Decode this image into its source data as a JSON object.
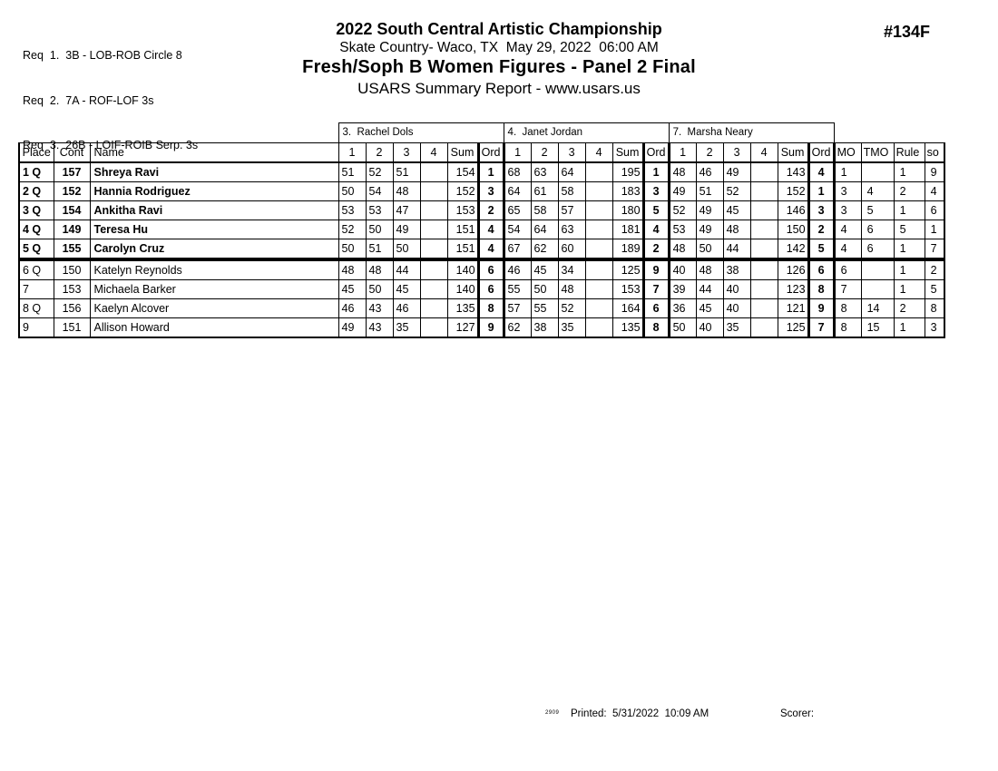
{
  "header": {
    "title": "2022 South Central Artistic Championship",
    "venue_line": "Skate Country- Waco, TX  May 29, 2022  06:00 AM",
    "event": "Fresh/Soph B Women Figures - Panel 2 Final",
    "report_line": "USARS Summary Report - www.usars.us",
    "event_number": "#134F"
  },
  "requirements": [
    "Req  1.  3B - LOB-ROB Circle 8",
    "Req  2.  7A - ROF-LOF 3s",
    "Req  3.  26B - LOIF-ROIB Serp. 3s"
  ],
  "judges": [
    {
      "label": "3.  Rachel Dols"
    },
    {
      "label": "4.  Janet Jordan"
    },
    {
      "label": "7.  Marsha Neary"
    }
  ],
  "columns": {
    "place": "Place",
    "cont": "Cont",
    "name": "Name",
    "score_cols": [
      "1",
      "2",
      "3",
      "4"
    ],
    "sum": "Sum",
    "ord": "Ord",
    "mo": "MO",
    "tmo": "TMO",
    "rule": "Rule",
    "so": "so"
  },
  "rows": [
    {
      "place": "1 Q",
      "cont": "157",
      "name": "Shreya Ravi",
      "bold": true,
      "cutoff_below": false,
      "judges": [
        {
          "scores": [
            "51",
            "52",
            "51",
            ""
          ],
          "sum": "154",
          "ord": "1"
        },
        {
          "scores": [
            "68",
            "63",
            "64",
            ""
          ],
          "sum": "195",
          "ord": "1"
        },
        {
          "scores": [
            "48",
            "46",
            "49",
            ""
          ],
          "sum": "143",
          "ord": "4"
        }
      ],
      "mo": "1",
      "tmo": "",
      "rule": "1",
      "so": "9"
    },
    {
      "place": "2 Q",
      "cont": "152",
      "name": "Hannia Rodriguez",
      "bold": true,
      "cutoff_below": false,
      "judges": [
        {
          "scores": [
            "50",
            "54",
            "48",
            ""
          ],
          "sum": "152",
          "ord": "3"
        },
        {
          "scores": [
            "64",
            "61",
            "58",
            ""
          ],
          "sum": "183",
          "ord": "3"
        },
        {
          "scores": [
            "49",
            "51",
            "52",
            ""
          ],
          "sum": "152",
          "ord": "1"
        }
      ],
      "mo": "3",
      "tmo": "4",
      "rule": "2",
      "so": "4"
    },
    {
      "place": "3 Q",
      "cont": "154",
      "name": "Ankitha Ravi",
      "bold": true,
      "cutoff_below": false,
      "judges": [
        {
          "scores": [
            "53",
            "53",
            "47",
            ""
          ],
          "sum": "153",
          "ord": "2"
        },
        {
          "scores": [
            "65",
            "58",
            "57",
            ""
          ],
          "sum": "180",
          "ord": "5"
        },
        {
          "scores": [
            "52",
            "49",
            "45",
            ""
          ],
          "sum": "146",
          "ord": "3"
        }
      ],
      "mo": "3",
      "tmo": "5",
      "rule": "1",
      "so": "6"
    },
    {
      "place": "4 Q",
      "cont": "149",
      "name": "Teresa Hu",
      "bold": true,
      "cutoff_below": false,
      "judges": [
        {
          "scores": [
            "52",
            "50",
            "49",
            ""
          ],
          "sum": "151",
          "ord": "4"
        },
        {
          "scores": [
            "54",
            "64",
            "63",
            ""
          ],
          "sum": "181",
          "ord": "4"
        },
        {
          "scores": [
            "53",
            "49",
            "48",
            ""
          ],
          "sum": "150",
          "ord": "2"
        }
      ],
      "mo": "4",
      "tmo": "6",
      "rule": "5",
      "so": "1"
    },
    {
      "place": "5 Q",
      "cont": "155",
      "name": "Carolyn Cruz",
      "bold": true,
      "cutoff_below": true,
      "judges": [
        {
          "scores": [
            "50",
            "51",
            "50",
            ""
          ],
          "sum": "151",
          "ord": "4"
        },
        {
          "scores": [
            "67",
            "62",
            "60",
            ""
          ],
          "sum": "189",
          "ord": "2"
        },
        {
          "scores": [
            "48",
            "50",
            "44",
            ""
          ],
          "sum": "142",
          "ord": "5"
        }
      ],
      "mo": "4",
      "tmo": "6",
      "rule": "1",
      "so": "7"
    },
    {
      "place": "6 Q",
      "cont": "150",
      "name": "Katelyn Reynolds",
      "bold": false,
      "cutoff_below": false,
      "judges": [
        {
          "scores": [
            "48",
            "48",
            "44",
            ""
          ],
          "sum": "140",
          "ord": "6"
        },
        {
          "scores": [
            "46",
            "45",
            "34",
            ""
          ],
          "sum": "125",
          "ord": "9"
        },
        {
          "scores": [
            "40",
            "48",
            "38",
            ""
          ],
          "sum": "126",
          "ord": "6"
        }
      ],
      "mo": "6",
      "tmo": "",
      "rule": "1",
      "so": "2"
    },
    {
      "place": "7",
      "cont": "153",
      "name": "Michaela Barker",
      "bold": false,
      "cutoff_below": false,
      "judges": [
        {
          "scores": [
            "45",
            "50",
            "45",
            ""
          ],
          "sum": "140",
          "ord": "6"
        },
        {
          "scores": [
            "55",
            "50",
            "48",
            ""
          ],
          "sum": "153",
          "ord": "7"
        },
        {
          "scores": [
            "39",
            "44",
            "40",
            ""
          ],
          "sum": "123",
          "ord": "8"
        }
      ],
      "mo": "7",
      "tmo": "",
      "rule": "1",
      "so": "5"
    },
    {
      "place": "8 Q",
      "cont": "156",
      "name": "Kaelyn Alcover",
      "bold": false,
      "cutoff_below": false,
      "judges": [
        {
          "scores": [
            "46",
            "43",
            "46",
            ""
          ],
          "sum": "135",
          "ord": "8"
        },
        {
          "scores": [
            "57",
            "55",
            "52",
            ""
          ],
          "sum": "164",
          "ord": "6"
        },
        {
          "scores": [
            "36",
            "45",
            "40",
            ""
          ],
          "sum": "121",
          "ord": "9"
        }
      ],
      "mo": "8",
      "tmo": "14",
      "rule": "2",
      "so": "8"
    },
    {
      "place": "9",
      "cont": "151",
      "name": "Allison Howard",
      "bold": false,
      "cutoff_below": false,
      "judges": [
        {
          "scores": [
            "49",
            "43",
            "35",
            ""
          ],
          "sum": "127",
          "ord": "9"
        },
        {
          "scores": [
            "62",
            "38",
            "35",
            ""
          ],
          "sum": "135",
          "ord": "8"
        },
        {
          "scores": [
            "50",
            "40",
            "35",
            ""
          ],
          "sum": "125",
          "ord": "7"
        }
      ],
      "mo": "8",
      "tmo": "15",
      "rule": "1",
      "so": "3"
    }
  ],
  "footer": {
    "version": "2909",
    "printed": "Printed:  5/31/2022  10:09 AM",
    "scorer": "Scorer:"
  }
}
